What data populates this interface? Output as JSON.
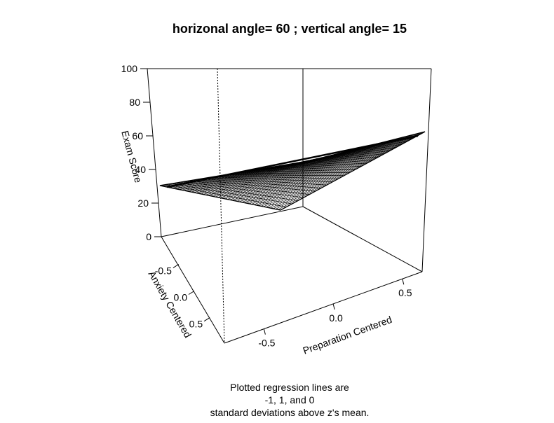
{
  "chart_data": {
    "type": "surface-3d",
    "title": "horizonal angle= 60 ; vertical angle= 15",
    "xlabel": "Preparation Centered",
    "ylabel": "Anxiety Centered",
    "zlabel": "Exam Score",
    "x_ticks": [
      "-0.5",
      "0.0",
      "0.5"
    ],
    "y_ticks": [
      "-0.5",
      "0.0",
      "0.5"
    ],
    "z_ticks": [
      "0",
      "20",
      "40",
      "60",
      "80",
      "100"
    ],
    "zlim": [
      0,
      100
    ],
    "surface": {
      "corner_left_z": 33,
      "corner_right_z": 65,
      "corner_front_z": 30,
      "grid_lines_major": 25,
      "grid_lines_minor": 10
    },
    "note_lines": [
      "Plotted regression lines are",
      "-1,  1,  and 0",
      "standard deviations above z's mean."
    ]
  }
}
